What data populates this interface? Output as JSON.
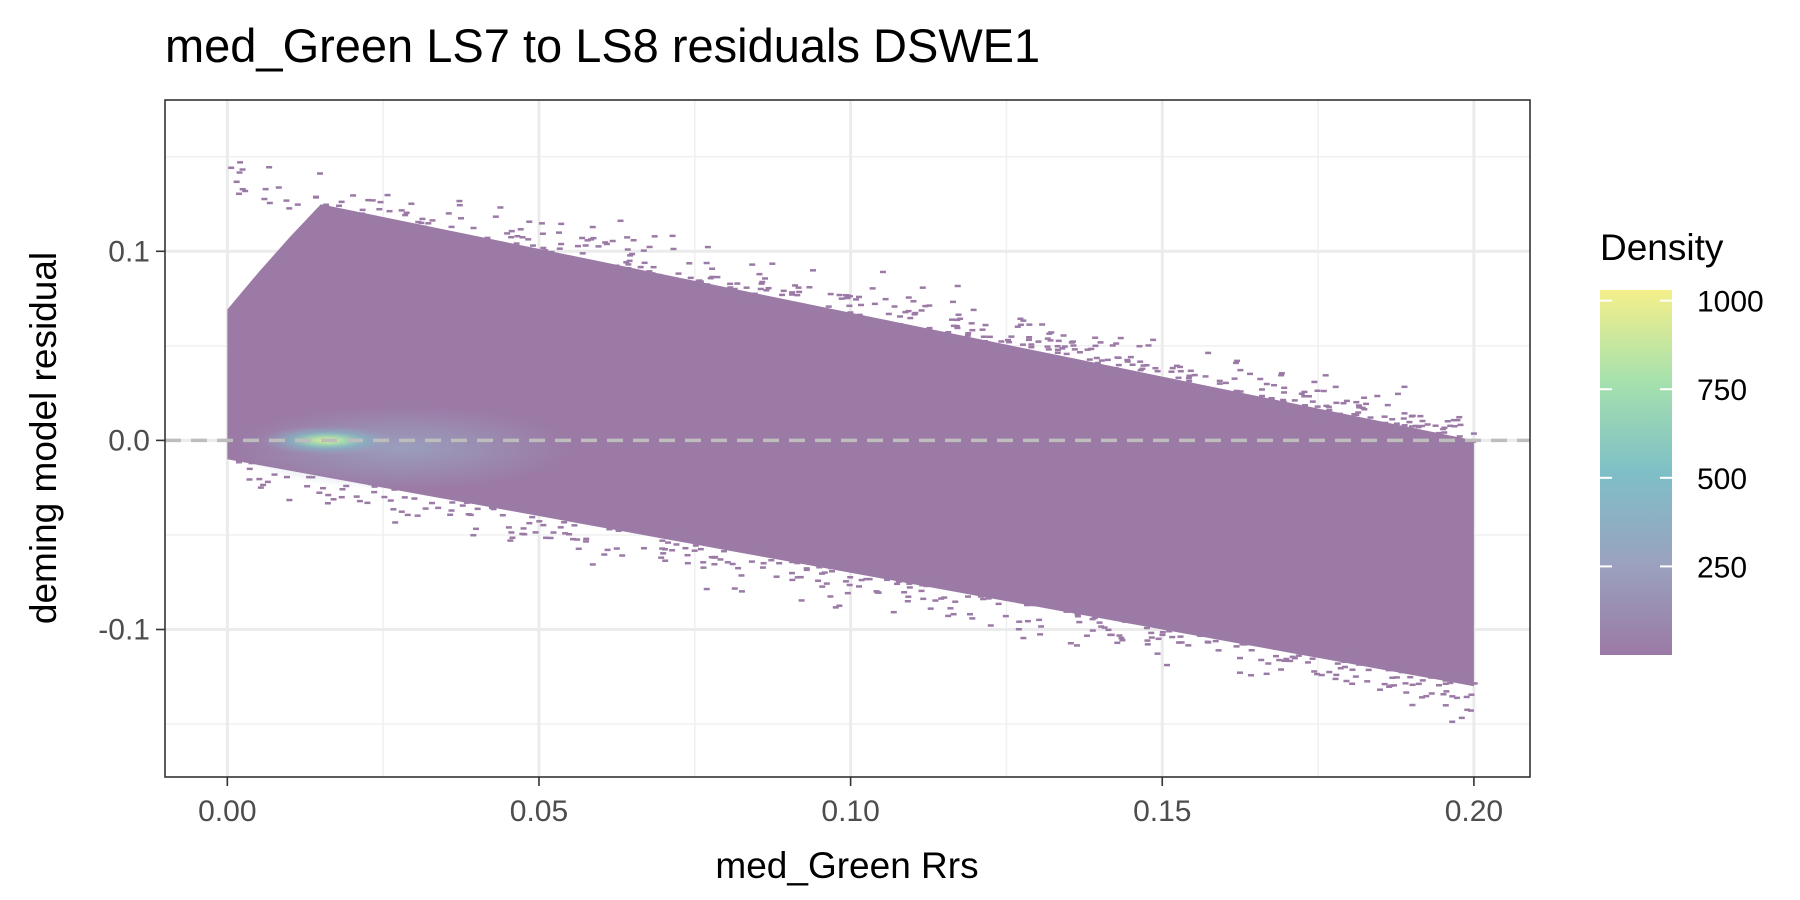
{
  "chart_data": {
    "type": "heatmap",
    "title": "med_Green LS7 to LS8 residuals DSWE1",
    "xlabel": "med_Green Rrs",
    "ylabel": "deming model residual",
    "xlim": [
      -0.01,
      0.209
    ],
    "ylim": [
      -0.178,
      0.18
    ],
    "x_ticks": [
      {
        "value": 0.0,
        "label": "0.00"
      },
      {
        "value": 0.05,
        "label": "0.05"
      },
      {
        "value": 0.1,
        "label": "0.10"
      },
      {
        "value": 0.15,
        "label": "0.15"
      },
      {
        "value": 0.2,
        "label": "0.20"
      }
    ],
    "y_ticks": [
      {
        "value": 0.1,
        "label": "0.1"
      },
      {
        "value": 0.0,
        "label": "0.0"
      },
      {
        "value": -0.1,
        "label": "-0.1"
      }
    ],
    "reference_line": {
      "y": 0,
      "style": "dashed",
      "color": "#bdbdbd"
    },
    "density_peak": {
      "x": 0.016,
      "y": 0.0,
      "density": 1000
    },
    "point_cloud": {
      "x_range": [
        0.0,
        0.2
      ],
      "upper_residual_at_x0": 0.135,
      "upper_residual_at_x02": 0.0,
      "lower_residual_at_x0": -0.01,
      "lower_residual_at_x02": -0.13
    },
    "legend": {
      "title": "Density",
      "position": "right",
      "range": [
        0,
        1030
      ],
      "ticks": [
        {
          "value": 250,
          "label": "250"
        },
        {
          "value": 500,
          "label": "500"
        },
        {
          "value": 750,
          "label": "750"
        },
        {
          "value": 1000,
          "label": "1000"
        }
      ],
      "colors": [
        "#9b7aa6",
        "#9aa2bf",
        "#7ebfc7",
        "#a6e1ad",
        "#f5ef8a"
      ]
    },
    "grid": true
  }
}
